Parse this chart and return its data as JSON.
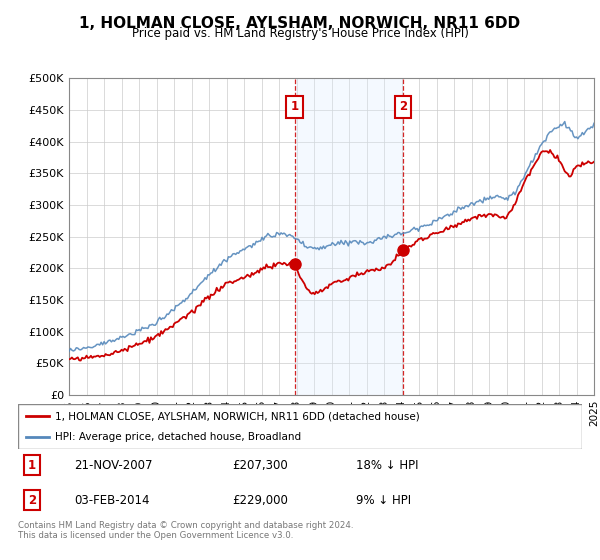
{
  "title": "1, HOLMAN CLOSE, AYLSHAM, NORWICH, NR11 6DD",
  "subtitle": "Price paid vs. HM Land Registry's House Price Index (HPI)",
  "legend_line1": "1, HOLMAN CLOSE, AYLSHAM, NORWICH, NR11 6DD (detached house)",
  "legend_line2": "HPI: Average price, detached house, Broadland",
  "sale1_date": "21-NOV-2007",
  "sale1_price": 207300,
  "sale2_date": "03-FEB-2014",
  "sale2_price": 229000,
  "sale1_note": "18% ↓ HPI",
  "sale2_note": "9% ↓ HPI",
  "footer": "Contains HM Land Registry data © Crown copyright and database right 2024.\nThis data is licensed under the Open Government Licence v3.0.",
  "red_color": "#cc0000",
  "blue_color": "#5588bb",
  "shade_color": "#ddeeff",
  "ylim": [
    0,
    500000
  ],
  "yticks": [
    0,
    50000,
    100000,
    150000,
    200000,
    250000,
    300000,
    350000,
    400000,
    450000,
    500000
  ],
  "ytick_labels": [
    "£0",
    "£50K",
    "£100K",
    "£150K",
    "£200K",
    "£250K",
    "£300K",
    "£350K",
    "£400K",
    "£450K",
    "£500K"
  ],
  "hpi_kx": [
    1995,
    1996,
    1997,
    1998,
    1999,
    2000,
    2001,
    2002,
    2003,
    2004,
    2005,
    2006,
    2007,
    2007.85,
    2008.5,
    2009,
    2009.5,
    2010,
    2011,
    2012,
    2013,
    2014,
    2015,
    2016,
    2017,
    2018,
    2019,
    2020.0,
    2020.5,
    2021,
    2021.5,
    2022,
    2022.5,
    2023,
    2023.3,
    2023.6,
    2024,
    2024.5,
    2025
  ],
  "hpi_ky": [
    70000,
    75000,
    82000,
    90000,
    100000,
    115000,
    135000,
    160000,
    190000,
    215000,
    230000,
    245000,
    255000,
    250000,
    235000,
    230000,
    232000,
    237000,
    243000,
    240000,
    248000,
    255000,
    265000,
    275000,
    290000,
    300000,
    312000,
    310000,
    320000,
    345000,
    370000,
    395000,
    415000,
    425000,
    430000,
    420000,
    405000,
    415000,
    425000
  ],
  "red_kx": [
    1995,
    1996,
    1997,
    1998,
    1999,
    2000,
    2001,
    2002,
    2003,
    2004,
    2005,
    2006,
    2007,
    2007.85,
    2008.3,
    2008.7,
    2009,
    2009.5,
    2010,
    2011,
    2012,
    2013,
    2013.5,
    2014.08,
    2014.5,
    2015,
    2016,
    2017,
    2018,
    2019,
    2020.0,
    2020.5,
    2021,
    2021.5,
    2022,
    2022.5,
    2023,
    2023.3,
    2023.6,
    2024,
    2024.5,
    2025
  ],
  "red_ky": [
    55000,
    58000,
    63000,
    70000,
    80000,
    92000,
    110000,
    130000,
    155000,
    175000,
    185000,
    198000,
    207300,
    207300,
    180000,
    162000,
    160000,
    165000,
    175000,
    185000,
    195000,
    200000,
    210000,
    229000,
    235000,
    245000,
    255000,
    268000,
    278000,
    285000,
    280000,
    305000,
    335000,
    360000,
    382000,
    385000,
    370000,
    355000,
    345000,
    360000,
    365000,
    370000
  ]
}
